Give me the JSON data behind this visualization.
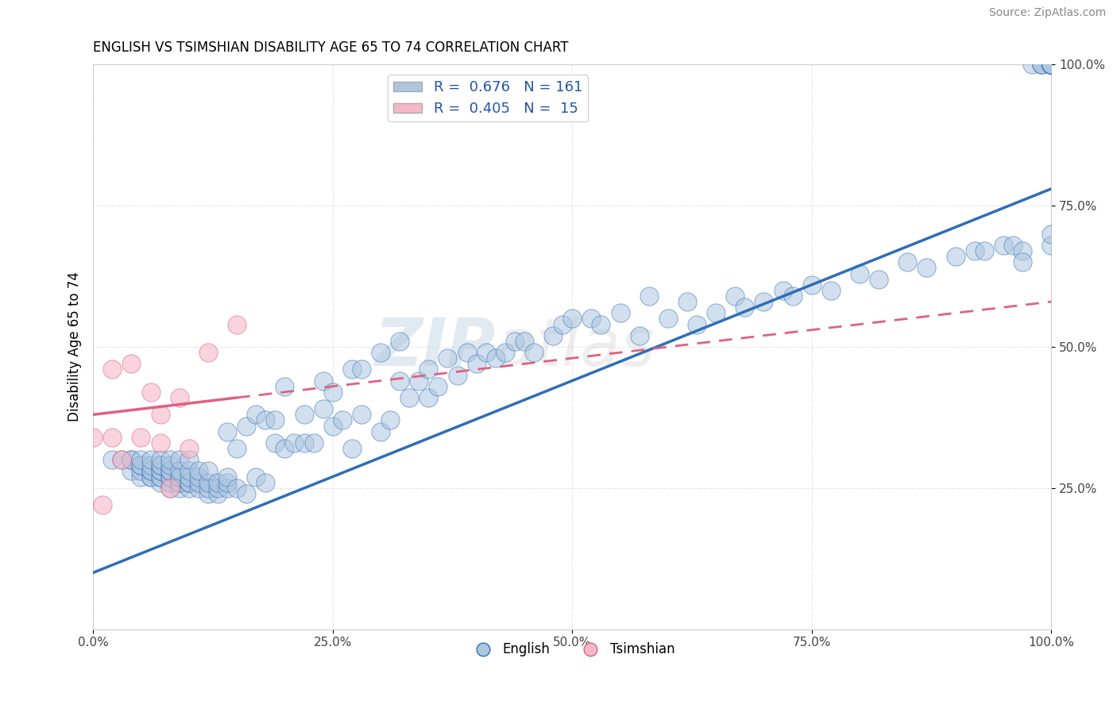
{
  "title": "ENGLISH VS TSIMSHIAN DISABILITY AGE 65 TO 74 CORRELATION CHART",
  "source": "Source: ZipAtlas.com",
  "ylabel": "Disability Age 65 to 74",
  "xlim": [
    0.0,
    1.0
  ],
  "ylim": [
    0.0,
    1.0
  ],
  "xtick_positions": [
    0.0,
    0.25,
    0.5,
    0.75,
    1.0
  ],
  "xtick_labels": [
    "0.0%",
    "25.0%",
    "50.0%",
    "75.0%",
    "100.0%"
  ],
  "ytick_positions": [
    0.25,
    0.5,
    0.75,
    1.0
  ],
  "ytick_labels": [
    "25.0%",
    "50.0%",
    "75.0%",
    "100.0%"
  ],
  "english_R": 0.676,
  "english_N": 161,
  "tsimshian_R": 0.405,
  "tsimshian_N": 15,
  "english_color": "#adc6e0",
  "tsimshian_color": "#f5b8c8",
  "english_line_color": "#2f6db5",
  "tsimshian_line_color": "#e06080",
  "background_color": "#ffffff",
  "grid_color": "#cccccc",
  "watermark_text": "ZIPatlas",
  "watermark_color": "#d0dce8",
  "english_scatter_x": [
    0.02,
    0.03,
    0.04,
    0.04,
    0.04,
    0.05,
    0.05,
    0.05,
    0.05,
    0.05,
    0.06,
    0.06,
    0.06,
    0.06,
    0.06,
    0.06,
    0.07,
    0.07,
    0.07,
    0.07,
    0.07,
    0.07,
    0.07,
    0.07,
    0.08,
    0.08,
    0.08,
    0.08,
    0.08,
    0.08,
    0.08,
    0.08,
    0.09,
    0.09,
    0.09,
    0.09,
    0.09,
    0.09,
    0.09,
    0.1,
    0.1,
    0.1,
    0.1,
    0.1,
    0.1,
    0.11,
    0.11,
    0.11,
    0.11,
    0.12,
    0.12,
    0.12,
    0.12,
    0.13,
    0.13,
    0.13,
    0.14,
    0.14,
    0.14,
    0.14,
    0.15,
    0.15,
    0.16,
    0.16,
    0.17,
    0.17,
    0.18,
    0.18,
    0.19,
    0.19,
    0.2,
    0.2,
    0.21,
    0.22,
    0.22,
    0.23,
    0.24,
    0.24,
    0.25,
    0.25,
    0.26,
    0.27,
    0.27,
    0.28,
    0.28,
    0.3,
    0.3,
    0.31,
    0.32,
    0.32,
    0.33,
    0.34,
    0.35,
    0.35,
    0.36,
    0.37,
    0.38,
    0.39,
    0.4,
    0.41,
    0.42,
    0.43,
    0.44,
    0.45,
    0.46,
    0.48,
    0.49,
    0.5,
    0.52,
    0.53,
    0.55,
    0.57,
    0.58,
    0.6,
    0.62,
    0.63,
    0.65,
    0.67,
    0.68,
    0.7,
    0.72,
    0.73,
    0.75,
    0.77,
    0.8,
    0.82,
    0.85,
    0.87,
    0.9,
    0.92,
    0.93,
    0.95,
    0.96,
    0.97,
    0.97,
    0.98,
    0.99,
    0.99,
    0.99,
    1.0,
    1.0,
    1.0,
    1.0,
    1.0,
    1.0,
    1.0,
    1.0,
    1.0,
    1.0,
    1.0,
    1.0,
    1.0,
    1.0,
    1.0,
    1.0,
    1.0,
    1.0,
    1.0,
    1.0,
    1.0,
    1.0
  ],
  "english_scatter_y": [
    0.3,
    0.3,
    0.28,
    0.3,
    0.3,
    0.27,
    0.28,
    0.29,
    0.29,
    0.3,
    0.27,
    0.27,
    0.28,
    0.28,
    0.29,
    0.3,
    0.26,
    0.27,
    0.27,
    0.28,
    0.28,
    0.29,
    0.29,
    0.3,
    0.25,
    0.26,
    0.27,
    0.27,
    0.28,
    0.28,
    0.29,
    0.3,
    0.25,
    0.26,
    0.26,
    0.27,
    0.27,
    0.28,
    0.3,
    0.25,
    0.26,
    0.26,
    0.27,
    0.28,
    0.3,
    0.25,
    0.26,
    0.27,
    0.28,
    0.24,
    0.25,
    0.26,
    0.28,
    0.24,
    0.25,
    0.26,
    0.25,
    0.26,
    0.27,
    0.35,
    0.25,
    0.32,
    0.24,
    0.36,
    0.27,
    0.38,
    0.26,
    0.37,
    0.33,
    0.37,
    0.32,
    0.43,
    0.33,
    0.33,
    0.38,
    0.33,
    0.39,
    0.44,
    0.36,
    0.42,
    0.37,
    0.32,
    0.46,
    0.38,
    0.46,
    0.35,
    0.49,
    0.37,
    0.44,
    0.51,
    0.41,
    0.44,
    0.41,
    0.46,
    0.43,
    0.48,
    0.45,
    0.49,
    0.47,
    0.49,
    0.48,
    0.49,
    0.51,
    0.51,
    0.49,
    0.52,
    0.54,
    0.55,
    0.55,
    0.54,
    0.56,
    0.52,
    0.59,
    0.55,
    0.58,
    0.54,
    0.56,
    0.59,
    0.57,
    0.58,
    0.6,
    0.59,
    0.61,
    0.6,
    0.63,
    0.62,
    0.65,
    0.64,
    0.66,
    0.67,
    0.67,
    0.68,
    0.68,
    0.67,
    0.65,
    1.0,
    1.0,
    1.0,
    1.0,
    1.0,
    1.0,
    1.0,
    1.0,
    1.0,
    1.0,
    1.0,
    1.0,
    1.0,
    1.0,
    1.0,
    1.0,
    1.0,
    1.0,
    1.0,
    1.0,
    1.0,
    1.0,
    1.0,
    1.0,
    0.68,
    0.7
  ],
  "tsimshian_scatter_x": [
    0.0,
    0.01,
    0.02,
    0.02,
    0.03,
    0.04,
    0.05,
    0.06,
    0.07,
    0.07,
    0.08,
    0.09,
    0.1,
    0.12,
    0.15
  ],
  "tsimshian_scatter_y": [
    0.34,
    0.22,
    0.34,
    0.46,
    0.3,
    0.47,
    0.34,
    0.42,
    0.33,
    0.38,
    0.25,
    0.41,
    0.32,
    0.49,
    0.54
  ],
  "eng_line_x0": 0.0,
  "eng_line_y0": 0.1,
  "eng_line_x1": 1.0,
  "eng_line_y1": 0.78,
  "tsi_line_x0": 0.0,
  "tsi_line_y0": 0.38,
  "tsi_line_x1": 1.0,
  "tsi_line_y1": 0.58
}
